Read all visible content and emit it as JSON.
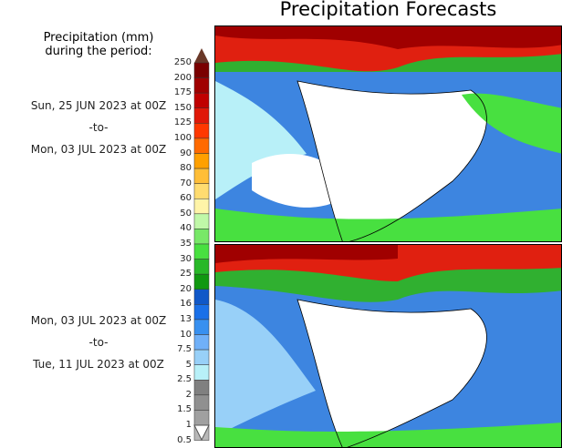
{
  "title": "Precipitation Forecasts",
  "legend_title": [
    "Precipitation (mm)",
    "during the period:"
  ],
  "periods": [
    {
      "start": "Sun, 25 JUN 2023 at 00Z",
      "sep": "-to-",
      "end": "Mon, 03 JUL 2023 at 00Z"
    },
    {
      "start": "Mon, 03 JUL 2023 at 00Z",
      "sep": "-to-",
      "end": "Tue, 11 JUL 2023 at 00Z"
    }
  ],
  "colorbar": {
    "labels": [
      "250",
      "200",
      "175",
      "150",
      "125",
      "100",
      "90",
      "80",
      "70",
      "60",
      "50",
      "40",
      "35",
      "30",
      "25",
      "20",
      "16",
      "13",
      "10",
      "7.5",
      "5",
      "2.5",
      "2",
      "1.5",
      "1",
      "0.5"
    ],
    "colors": [
      "#7a0000",
      "#a00000",
      "#c00000",
      "#e01808",
      "#ff3800",
      "#ff6a00",
      "#ffa000",
      "#ffbe38",
      "#ffdc70",
      "#fff4a8",
      "#c0f8a8",
      "#78e868",
      "#48e040",
      "#28b828",
      "#109810",
      "#1058c8",
      "#1a70e8",
      "#3890f0",
      "#70b0f8",
      "#98d0f8",
      "#b8f0f8",
      "#808080",
      "#909090",
      "#a0a0a0",
      "#b8b8b8"
    ],
    "over_color": "#6a3828",
    "under_color": "#ffffff"
  }
}
